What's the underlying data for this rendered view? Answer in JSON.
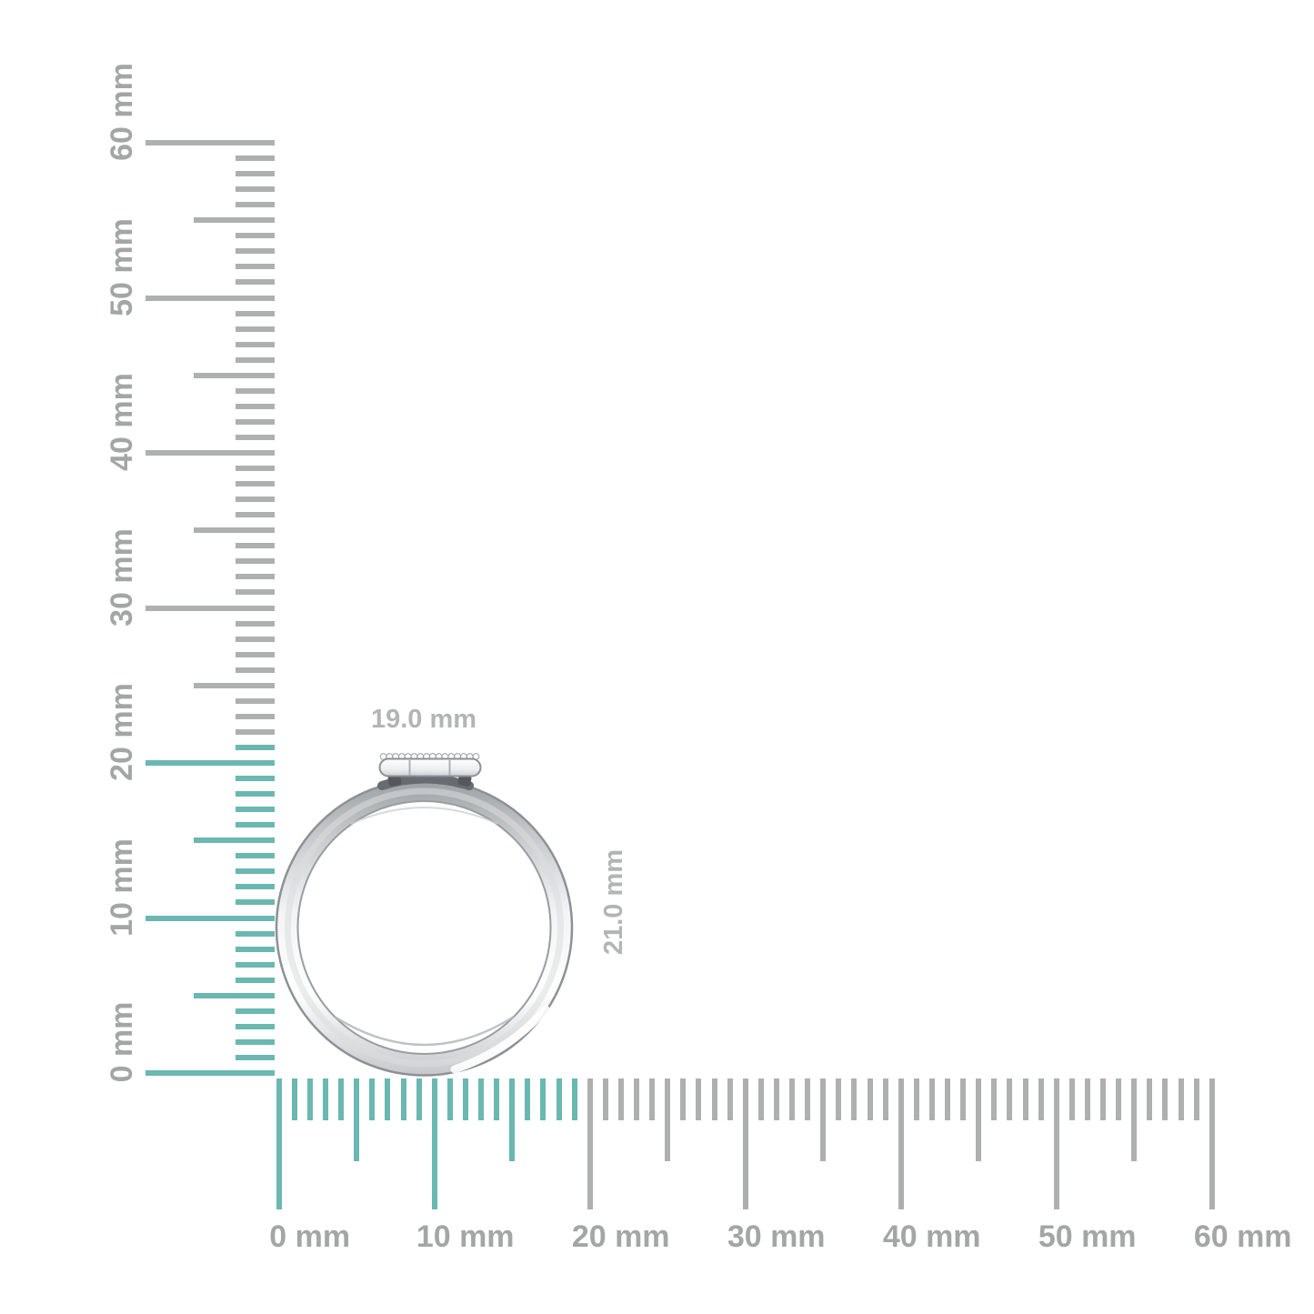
{
  "image_type": "ring-size-dimension-diagram",
  "dimensions": {
    "width_label": "19.0 mm",
    "height_label": "21.0 mm"
  },
  "rulers": {
    "unit": "mm",
    "vertical": {
      "min_mm": 0,
      "max_mm": 60,
      "minor_step_mm": 1,
      "half_step_mm": 5,
      "major_step_mm": 10,
      "labels": [
        "0 mm",
        "10 mm",
        "20 mm",
        "30 mm",
        "40 mm",
        "50 mm",
        "60 mm"
      ],
      "highlight_from_mm": 0,
      "highlight_to_mm": 21
    },
    "horizontal": {
      "min_mm": 0,
      "max_mm": 60,
      "minor_step_mm": 1,
      "half_step_mm": 5,
      "major_step_mm": 10,
      "labels": [
        "0 mm",
        "10 mm",
        "20 mm",
        "30 mm",
        "40 mm",
        "50 mm",
        "60 mm"
      ],
      "highlight_from_mm": 0,
      "highlight_to_mm": 19
    }
  },
  "colors": {
    "background": "#ffffff",
    "highlight_teal": "#6ab8b0",
    "tick_gray": "#aeb0af",
    "label_gray": "#a3a6a5",
    "dimension_label_gray": "#b3b5b4",
    "ring_outline_gray": "#8d9195"
  }
}
